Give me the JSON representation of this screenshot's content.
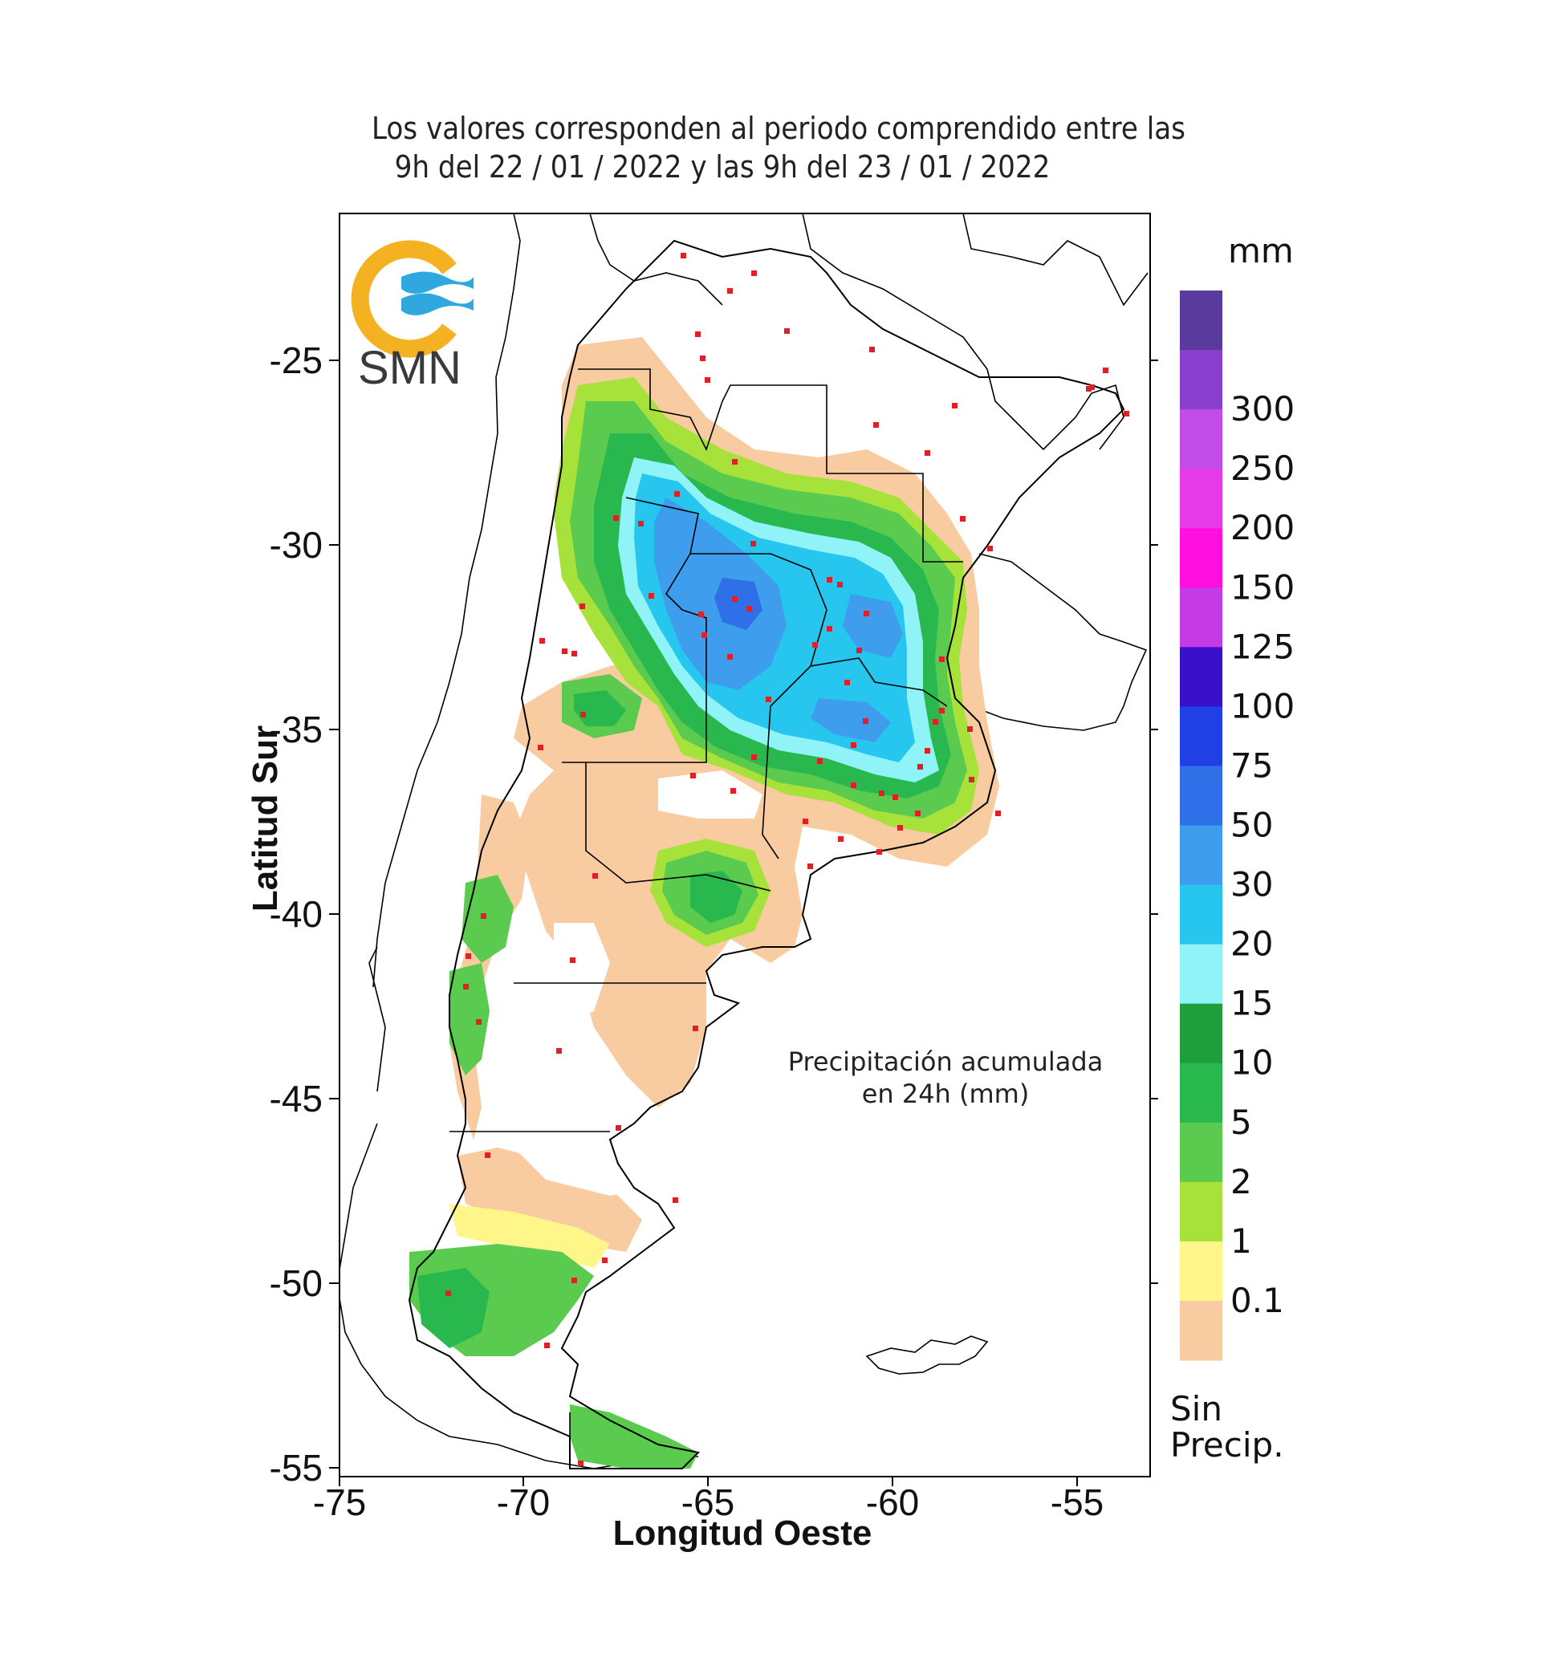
{
  "header": {
    "line1": "Los valores corresponden al periodo comprendido entre las",
    "line2": "9h del 22 / 01 / 2022  y las 9h del 23 / 01 / 2022"
  },
  "logo": {
    "text": "SMN",
    "ring_color": "#F4B223",
    "wave_color": "#2FA8E0"
  },
  "axes": {
    "y_title": "Latitud Sur",
    "x_title": "Longitud Oeste",
    "y_ticks": [
      "-25",
      "-30",
      "-35",
      "-40",
      "-45",
      "-50",
      "-55"
    ],
    "x_ticks": [
      "-75",
      "-70",
      "-65",
      "-60",
      "-55"
    ]
  },
  "annotation": {
    "line1": "Precipitación acumulada",
    "line2": "en 24h (mm)"
  },
  "legend": {
    "unit": "mm",
    "labels": [
      "300",
      "250",
      "200",
      "150",
      "125",
      "100",
      "75",
      "50",
      "30",
      "20",
      "15",
      "10",
      "5",
      "2",
      "1",
      "0.1"
    ],
    "colors": [
      "#5B3A9E",
      "#8B3FCF",
      "#C14DE6",
      "#E63BE6",
      "#FF10E0",
      "#C43BE6",
      "#3A10C8",
      "#2040E6",
      "#2F6FE8",
      "#3F9DEE",
      "#26C6EE",
      "#8FF3F7",
      "#1F9E3E",
      "#28B84E",
      "#5BCB4F",
      "#A6E23A",
      "#FFF68A",
      "#F8CBA0"
    ],
    "no_precip_line1": "Sin",
    "no_precip_line2": "Precip."
  },
  "stations": "red dots mark reporting stations"
}
